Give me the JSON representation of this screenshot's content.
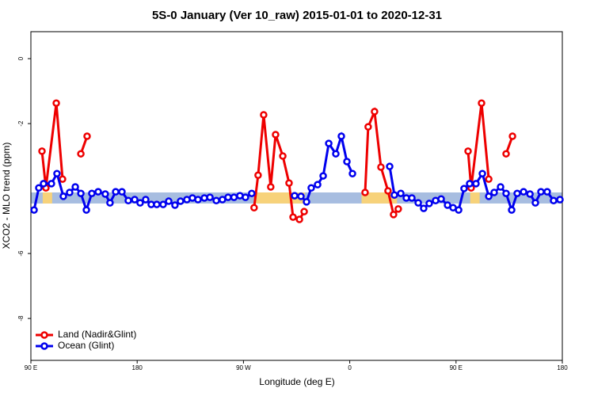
{
  "chart_data": {
    "type": "line",
    "title": "5S-0 January (Ver 10_raw)   2015-01-01 to 2020-12-31",
    "x_label": "Longitude (deg E)",
    "y_label": "XCO2 - MLO trend (ppm)",
    "xlim": [
      90,
      540
    ],
    "ylim": [
      -9.29,
      0.83
    ],
    "xticks": [
      {
        "value": 90,
        "label": "90 E"
      },
      {
        "value": 180,
        "label": "180"
      },
      {
        "value": 270,
        "label": "90 W"
      },
      {
        "value": 360,
        "label": "0"
      },
      {
        "value": 450,
        "label": "90 E"
      },
      {
        "value": 540,
        "label": "180"
      }
    ],
    "yticks": [
      0,
      -2,
      -6,
      -8
    ],
    "legend": "bottom-left",
    "band": {
      "range": [
        -4.46,
        -4.12
      ],
      "color": "#a7bde0",
      "land_color": "#f7d27a",
      "land_x": [
        [
          100,
          108
        ],
        [
          279,
          322
        ],
        [
          370,
          400
        ],
        [
          462,
          470
        ]
      ]
    },
    "series": [
      {
        "name": "Land (Nadir&Glint)",
        "color": "#ee0000",
        "x": [
          99.4,
          102.7,
          111.5,
          116.8,
          null,
          132.3,
          137.6,
          null,
          279,
          282.4,
          287.1,
          293.1,
          297.2,
          303.3,
          308.6,
          312,
          317.4,
          321.4,
          null,
          373,
          375.6,
          381,
          386.4,
          392.4,
          397.1,
          401.1,
          null,
          460.2,
          462.8,
          471.6,
          477.7,
          null,
          492.4,
          497.8
        ],
        "values": [
          -2.85,
          -3.98,
          -1.37,
          -3.71,
          null,
          -2.93,
          -2.39,
          null,
          -4.59,
          -3.59,
          -1.73,
          -3.95,
          -2.34,
          -3.0,
          -3.83,
          -4.88,
          -4.95,
          -4.71,
          null,
          -4.12,
          -2.1,
          -1.63,
          -3.34,
          -4.07,
          -4.8,
          -4.63,
          null,
          -2.85,
          -3.98,
          -1.37,
          -3.71,
          null,
          -2.93,
          -2.39
        ]
      },
      {
        "name": "Ocean (Glint)",
        "color": "#0000ee",
        "x": [
          92.7,
          96.7,
          100.7,
          107.4,
          112.1,
          117.5,
          122.8,
          127.6,
          132.3,
          137,
          141.6,
          147,
          153,
          157,
          161.8,
          167.1,
          172.5,
          177.9,
          182.5,
          187.2,
          191.9,
          196.6,
          202,
          206.7,
          212,
          216.7,
          222.1,
          226.8,
          231.5,
          236.9,
          241.6,
          247,
          252.2,
          257,
          262,
          267,
          271.7,
          277,
          null,
          313.3,
          318.7,
          323.4,
          327.4,
          332.8,
          337.5,
          342.2,
          348.2,
          352.9,
          357.6,
          362.3,
          null,
          393.8,
          397.8,
          403.2,
          407.9,
          412.6,
          418,
          422.6,
          427.3,
          432.7,
          437.4,
          442.8,
          447.5,
          452.2,
          456.8,
          461.5,
          466.9,
          472.3,
          477.7,
          482.3,
          487.7,
          492.4,
          497.1,
          501.8,
          507.2,
          512.6,
          517.2,
          521.9,
          527.2,
          532.6,
          538
        ],
        "values": [
          -4.66,
          -3.98,
          -3.85,
          -3.85,
          -3.54,
          -4.24,
          -4.12,
          -3.95,
          -4.15,
          -4.66,
          -4.15,
          -4.1,
          -4.17,
          -4.44,
          -4.1,
          -4.1,
          -4.37,
          -4.34,
          -4.44,
          -4.34,
          -4.49,
          -4.49,
          -4.49,
          -4.39,
          -4.51,
          -4.39,
          -4.34,
          -4.29,
          -4.34,
          -4.29,
          -4.27,
          -4.37,
          -4.34,
          -4.27,
          -4.27,
          -4.22,
          -4.27,
          -4.15,
          null,
          -4.22,
          -4.24,
          -4.41,
          -3.98,
          -3.88,
          -3.61,
          -2.61,
          -2.93,
          -2.39,
          -3.17,
          -3.54,
          null,
          -3.32,
          -4.2,
          -4.15,
          -4.29,
          -4.29,
          -4.44,
          -4.61,
          -4.46,
          -4.37,
          -4.32,
          -4.51,
          -4.59,
          -4.66,
          -4.0,
          -3.85,
          -3.85,
          -3.54,
          -4.24,
          -4.12,
          -3.95,
          -4.15,
          -4.66,
          -4.15,
          -4.1,
          -4.17,
          -4.44,
          -4.1,
          -4.1,
          -4.37,
          -4.34
        ]
      }
    ]
  }
}
